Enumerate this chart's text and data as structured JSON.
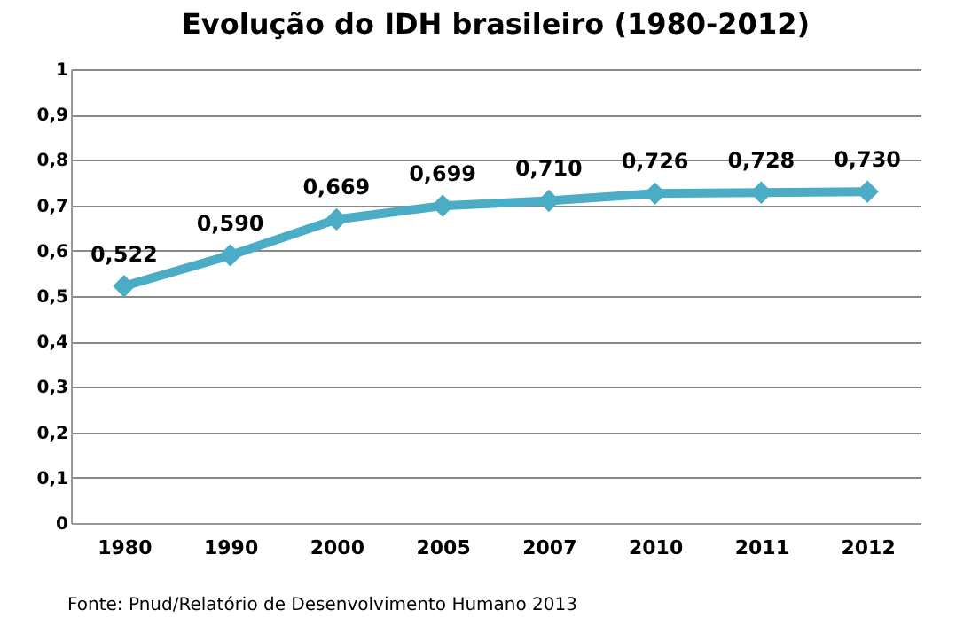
{
  "chart_data": {
    "type": "line",
    "title": "Evolução do IDH brasileiro (1980-2012)",
    "categories": [
      "1980",
      "1990",
      "2000",
      "2005",
      "2007",
      "2010",
      "2011",
      "2012"
    ],
    "series": [
      {
        "color": "#4bacc6",
        "values": [
          0.522,
          0.59,
          0.669,
          0.699,
          0.71,
          0.726,
          0.728,
          0.73
        ],
        "value_labels": [
          "0,522",
          "0,590",
          "0,669",
          "0,699",
          "0,710",
          "0,726",
          "0,728",
          "0,730"
        ]
      }
    ],
    "ylim": [
      0,
      1
    ],
    "yticks": [
      0,
      {
        "value": 0.1,
        "label": "0,1"
      },
      {
        "value": 0.2,
        "label": "0,2"
      },
      {
        "value": 0.3,
        "label": "0,3"
      },
      {
        "value": 0.4,
        "label": "0,4"
      },
      {
        "value": 0.5,
        "label": "0,5"
      },
      {
        "value": 0.6,
        "label": "0,6"
      },
      {
        "value": 0.7,
        "label": "0,7"
      },
      {
        "value": 0.8,
        "label": "0,8"
      },
      {
        "value": 0.9,
        "label": "0,9"
      },
      1
    ],
    "grid": "y",
    "marker": "diamond",
    "line_style": "solid",
    "annotations": [
      "Fonte: Pnud/Relatório de Desenvolvimento Humano 2013"
    ]
  }
}
